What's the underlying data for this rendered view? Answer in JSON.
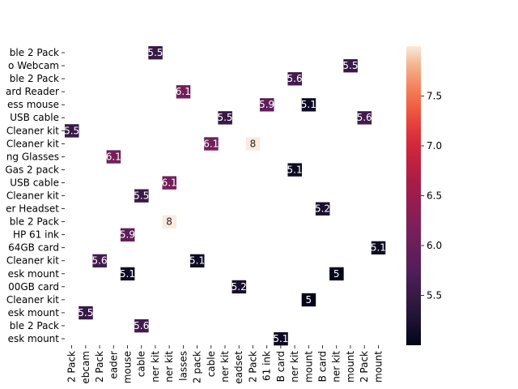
{
  "chart_data": {
    "type": "heatmap",
    "title": "",
    "xlabel": "",
    "ylabel": "",
    "y_categories": [
      "ble 2 Pack",
      "o Webcam",
      "ble 2 Pack",
      "ard Reader",
      "ess mouse",
      "USB cable",
      "Cleaner kit",
      "Cleaner kit",
      "ng Glasses",
      "Gas 2 pack",
      "USB cable",
      "Cleaner kit",
      "er Headset",
      "ble 2 Pack",
      "HP 61 ink",
      "64GB card",
      "Cleaner kit",
      "esk mount",
      "00GB card",
      "Cleaner kit",
      "esk mount",
      "ble 2 Pack",
      "esk mount"
    ],
    "x_categories": [
      "2 Pack",
      "ebcam",
      "2 Pack",
      "eader",
      "mouse",
      "cable",
      "ner kit",
      "ner kit",
      "lasses",
      "2 pack",
      "cable",
      "ner kit",
      "eadset",
      "2 Pack",
      "61 ink",
      "B card",
      "ner kit",
      "mount",
      "B card",
      "ner kit",
      "mount",
      "2 Pack",
      "mount"
    ],
    "cells": [
      {
        "row": 0,
        "col": 6,
        "value": 5.5
      },
      {
        "row": 1,
        "col": 20,
        "value": 5.5
      },
      {
        "row": 2,
        "col": 16,
        "value": 5.6
      },
      {
        "row": 3,
        "col": 8,
        "value": 6.1
      },
      {
        "row": 4,
        "col": 14,
        "value": 5.9
      },
      {
        "row": 4,
        "col": 17,
        "value": 5.1
      },
      {
        "row": 5,
        "col": 11,
        "value": 5.5
      },
      {
        "row": 5,
        "col": 21,
        "value": 5.6
      },
      {
        "row": 6,
        "col": 0,
        "value": 5.5
      },
      {
        "row": 7,
        "col": 10,
        "value": 6.1
      },
      {
        "row": 7,
        "col": 13,
        "value": 8
      },
      {
        "row": 8,
        "col": 3,
        "value": 6.1
      },
      {
        "row": 9,
        "col": 16,
        "value": 5.1
      },
      {
        "row": 10,
        "col": 7,
        "value": 6.1
      },
      {
        "row": 11,
        "col": 5,
        "value": 5.5
      },
      {
        "row": 12,
        "col": 18,
        "value": 5.2
      },
      {
        "row": 13,
        "col": 7,
        "value": 8
      },
      {
        "row": 14,
        "col": 4,
        "value": 5.9
      },
      {
        "row": 15,
        "col": 22,
        "value": 5.1
      },
      {
        "row": 16,
        "col": 2,
        "value": 5.6
      },
      {
        "row": 16,
        "col": 9,
        "value": 5.1
      },
      {
        "row": 17,
        "col": 4,
        "value": 5.1
      },
      {
        "row": 17,
        "col": 19,
        "value": 5
      },
      {
        "row": 18,
        "col": 12,
        "value": 5.2
      },
      {
        "row": 19,
        "col": 17,
        "value": 5
      },
      {
        "row": 20,
        "col": 1,
        "value": 5.5
      },
      {
        "row": 21,
        "col": 5,
        "value": 5.6
      },
      {
        "row": 22,
        "col": 15,
        "value": 5.1
      }
    ],
    "colorbar": {
      "vmin": 5,
      "vmax": 8,
      "ticks": [
        "5.5",
        "6.0",
        "6.5",
        "7.0",
        "7.5"
      ],
      "tick_values": [
        5.5,
        6.0,
        6.5,
        7.0,
        7.5
      ],
      "colormap": "rocket"
    }
  }
}
